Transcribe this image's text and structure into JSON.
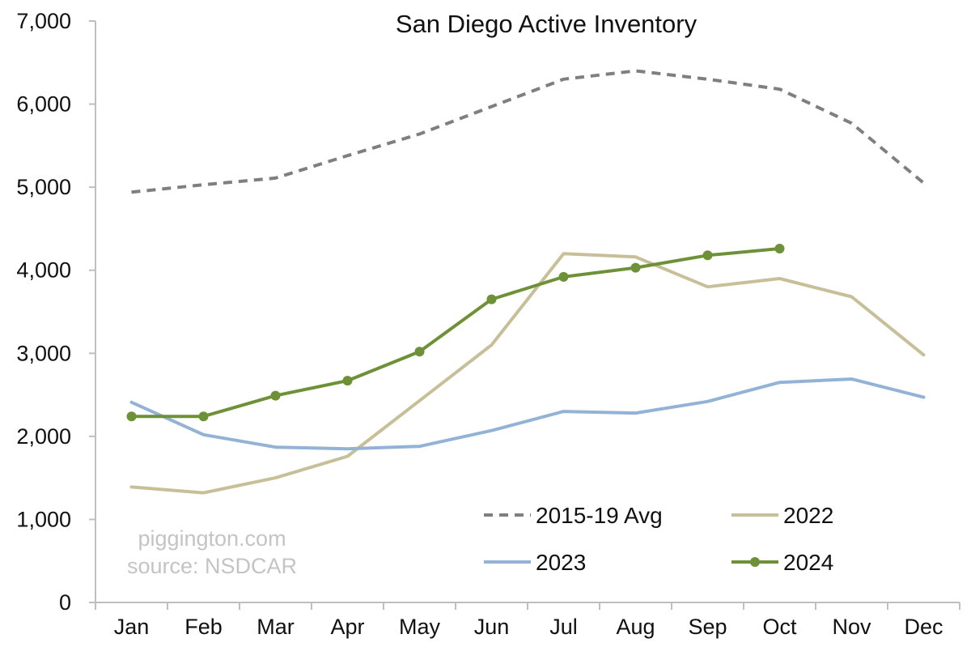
{
  "chart_data": {
    "type": "line",
    "title": "San Diego Active Inventory",
    "xlabel": "",
    "ylabel": "",
    "categories": [
      "Jan",
      "Feb",
      "Mar",
      "Apr",
      "May",
      "Jun",
      "Jul",
      "Aug",
      "Sep",
      "Oct",
      "Nov",
      "Dec"
    ],
    "ylim": [
      0,
      7000
    ],
    "yticks": [
      0,
      1000,
      2000,
      3000,
      4000,
      5000,
      6000,
      7000
    ],
    "ytick_labels": [
      "0",
      "1,000",
      "2,000",
      "3,000",
      "4,000",
      "5,000",
      "6,000",
      "7,000"
    ],
    "grid": false,
    "legend_position": "bottom-right",
    "series": [
      {
        "name": "2015-19 Avg",
        "color": "#7f7f7f",
        "style": "dashed",
        "markers": false,
        "values": [
          4940,
          5030,
          5110,
          5380,
          5640,
          5970,
          6300,
          6400,
          6300,
          6180,
          5770,
          5050
        ]
      },
      {
        "name": "2022",
        "color": "#c7bf98",
        "style": "solid",
        "markers": false,
        "values": [
          1390,
          1320,
          1500,
          1760,
          2430,
          3100,
          4200,
          4160,
          3800,
          3900,
          3680,
          2980
        ]
      },
      {
        "name": "2023",
        "color": "#93b3d6",
        "style": "solid",
        "markers": false,
        "values": [
          2410,
          2020,
          1870,
          1850,
          1880,
          2070,
          2300,
          2280,
          2420,
          2650,
          2690,
          2470
        ]
      },
      {
        "name": "2024",
        "color": "#6e9138",
        "style": "solid",
        "markers": true,
        "values": [
          2240,
          2240,
          2490,
          2670,
          3020,
          3650,
          3920,
          4030,
          4180,
          4260,
          null,
          null
        ]
      }
    ]
  },
  "watermark": {
    "line1": "piggington.com",
    "line2": "source: NSDCAR"
  }
}
